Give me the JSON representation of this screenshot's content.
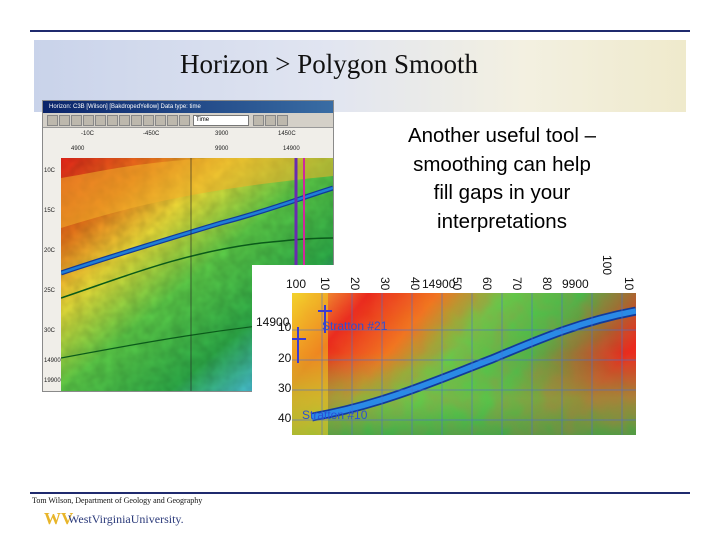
{
  "slide": {
    "title": "Horizon > Polygon Smooth",
    "callout_lines": [
      "Another useful tool –",
      "smoothing can help",
      "fill gaps in your",
      "interpretations"
    ],
    "footer_credit": "Tom Wilson, Department of Geology and Geography",
    "logo_mark": "WV",
    "logo_text": "WestVirginiaUniversity."
  },
  "screenshot": {
    "window_title": "Horizon: C3B [Wilson] [BakdropedYellow] Data type: time",
    "domain_select": "Time",
    "ruler_labels": [
      "-10C",
      "-450C",
      "3900",
      "1450C",
      "4900",
      "9900",
      "14900"
    ],
    "axis_labels": [
      "10C",
      "15C",
      "20C",
      "25C",
      "30C",
      "14900",
      "19900"
    ],
    "wells": [
      "Stratton #21",
      "Stratton #10"
    ]
  },
  "inset": {
    "top_ticks": [
      "100",
      "10",
      "20",
      "30",
      "40",
      "50",
      "60",
      "70",
      "80",
      "100",
      "10"
    ],
    "top_inline_labels": [
      "14900",
      "9900"
    ],
    "left_ticks": [
      "14900",
      "10",
      "20",
      "30",
      "40"
    ],
    "wells": [
      "Stratton #21",
      "Stratton #10"
    ]
  },
  "colors": {
    "accent_rule": "#1f2a6e",
    "horizon_line": "#1f7fd6",
    "well_label": "#2a4fd8",
    "marker": "#3b3bd0"
  }
}
